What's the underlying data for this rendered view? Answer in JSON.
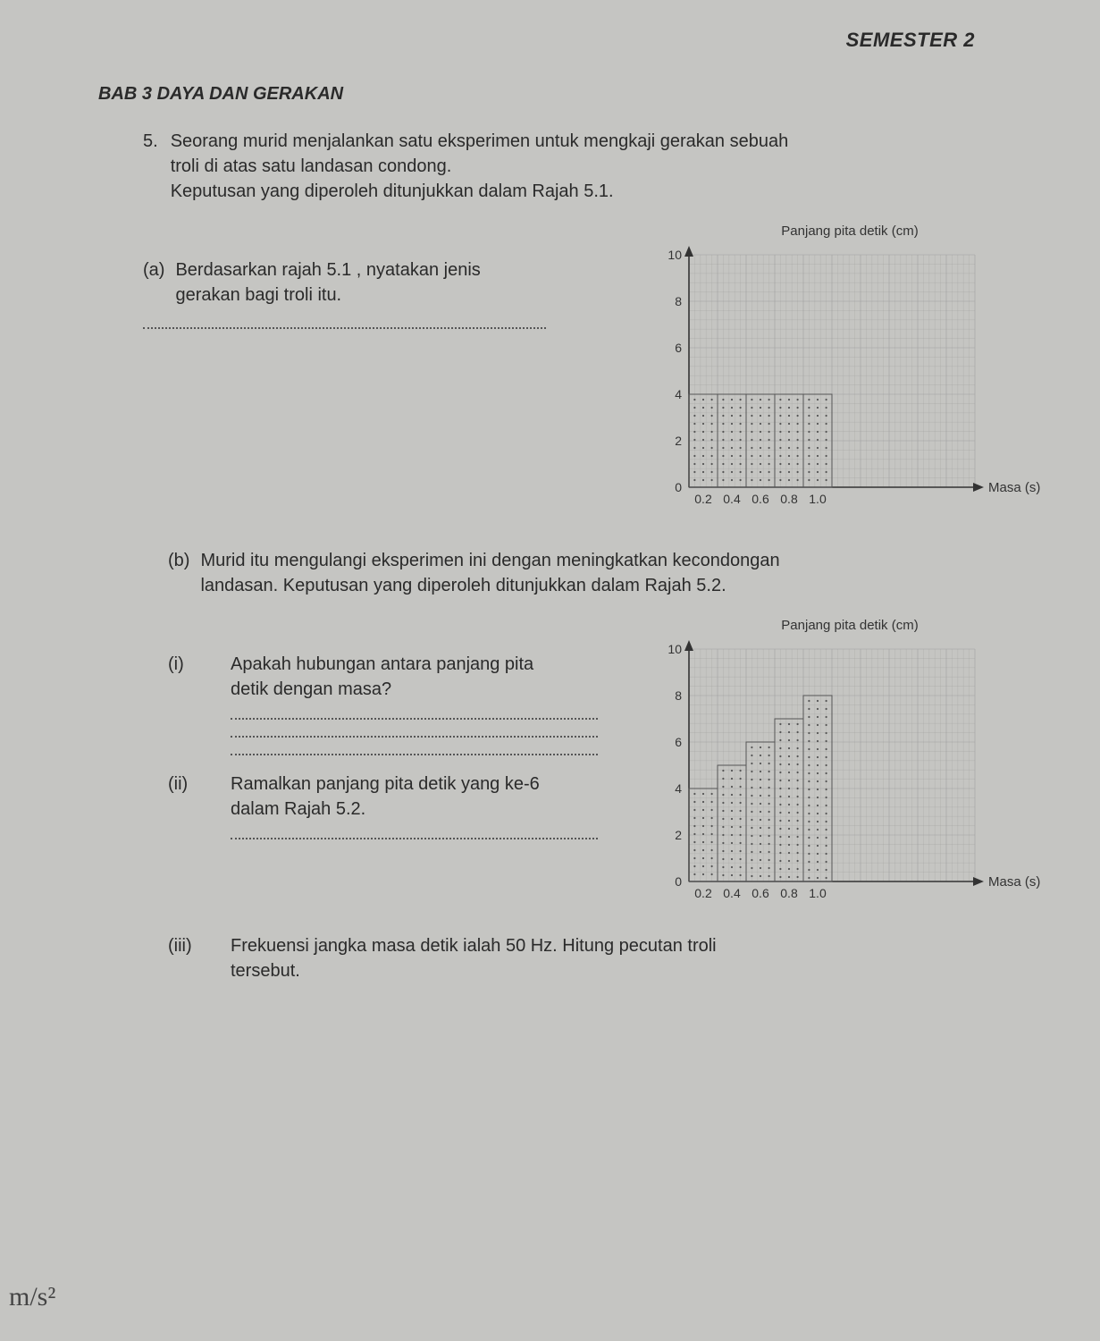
{
  "header": {
    "semester": "SEMESTER 2"
  },
  "chapter": "BAB 3 DAYA DAN GERAKAN",
  "question": {
    "number": "5.",
    "lead1": "Seorang murid menjalankan satu eksperimen untuk mengkaji gerakan sebuah",
    "lead2": "troli di atas satu landasan condong.",
    "lead3": "Keputusan yang diperoleh ditunjukkan dalam Rajah 5.1."
  },
  "part_a": {
    "letter": "(a)",
    "text1": "Berdasarkan rajah 5.1 , nyatakan jenis",
    "text2": "gerakan bagi troli itu."
  },
  "chart1": {
    "title": "Panjang pita detik (cm)",
    "xlabel": "Masa (s)",
    "y_ticks": [
      "0",
      "2",
      "4",
      "6",
      "8",
      "10"
    ],
    "x_ticks": [
      "0.2",
      "0.4",
      "0.6",
      "0.8",
      "1.0"
    ],
    "bar_heights": [
      4,
      4,
      4,
      4,
      4
    ],
    "ylim": 10,
    "bar_color": "none",
    "border_color": "#555",
    "grid_color": "#999",
    "bg_color": "#c5c5c2"
  },
  "part_b": {
    "letter": "(b)",
    "text1": "Murid itu mengulangi eksperimen ini dengan meningkatkan kecondongan",
    "text2": "landasan. Keputusan yang diperoleh ditunjukkan dalam Rajah 5.2."
  },
  "chart2": {
    "title": "Panjang pita detik (cm)",
    "xlabel": "Masa (s)",
    "y_ticks": [
      "0",
      "2",
      "4",
      "6",
      "8",
      "10"
    ],
    "x_ticks": [
      "0.2",
      "0.4",
      "0.6",
      "0.8",
      "1.0"
    ],
    "bar_heights": [
      4,
      5,
      6,
      7,
      8
    ],
    "ylim": 10,
    "bar_color": "none",
    "border_color": "#555",
    "grid_color": "#999",
    "bg_color": "#c5c5c2"
  },
  "roman_i": {
    "num": "(i)",
    "text1": "Apakah hubungan antara panjang pita",
    "text2": "detik dengan masa?"
  },
  "roman_ii": {
    "num": "(ii)",
    "text1": "Ramalkan panjang pita detik yang ke-6",
    "text2": "dalam Rajah 5.2."
  },
  "roman_iii": {
    "num": "(iii)",
    "text1": "Frekuensi jangka masa detik ialah 50 Hz. Hitung pecutan troli",
    "text2": "tersebut."
  },
  "margin_note": "m/s²"
}
